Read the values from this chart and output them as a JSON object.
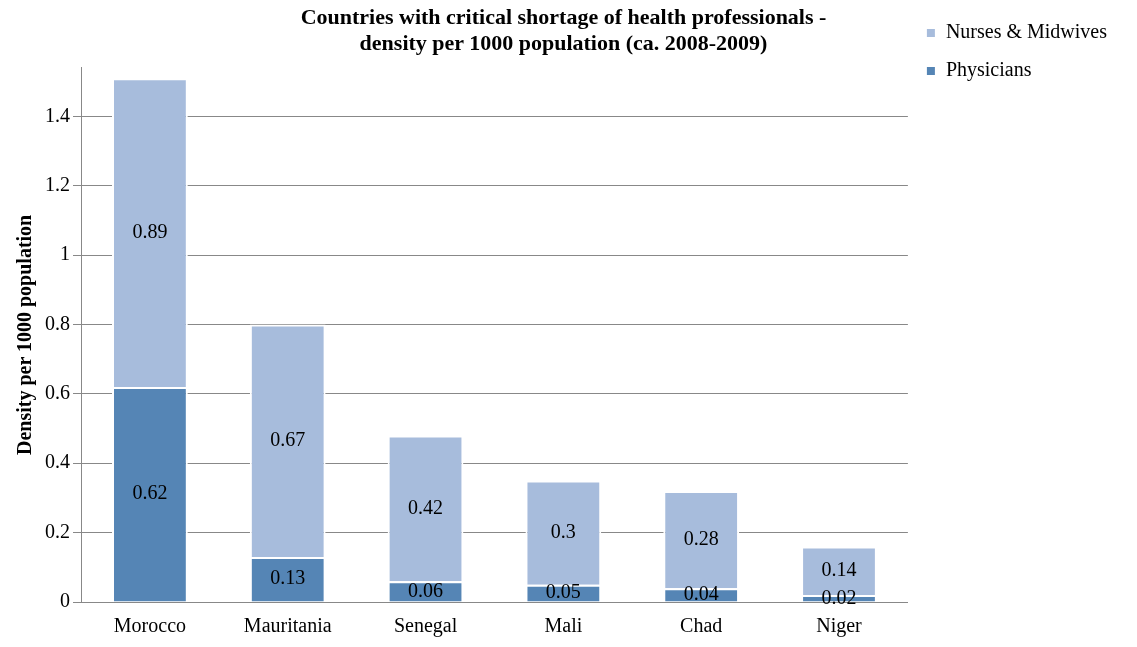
{
  "chart_data": {
    "type": "bar",
    "title": "Countries with critical shortage of health professionals -\ndensity per 1000 population (ca. 2008-2009)",
    "ylabel": "Density per 1000 population",
    "categories": [
      "Morocco",
      "Mauritania",
      "Senegal",
      "Mali",
      "Chad",
      "Niger"
    ],
    "series": [
      {
        "name": "Physicians",
        "color": "#5585b5",
        "values": [
          0.62,
          0.13,
          0.06,
          0.05,
          0.04,
          0.02
        ]
      },
      {
        "name": "Nurses & Midwives",
        "color": "#a7bcdc",
        "values": [
          0.89,
          0.67,
          0.42,
          0.3,
          0.28,
          0.14
        ]
      }
    ],
    "stacked": true,
    "ylim": [
      0,
      1.54
    ],
    "yticks": [
      0,
      0.2,
      0.4,
      0.6,
      0.8,
      1,
      1.2,
      1.4
    ],
    "grid": "y",
    "legend": "right",
    "data_labels": true
  }
}
